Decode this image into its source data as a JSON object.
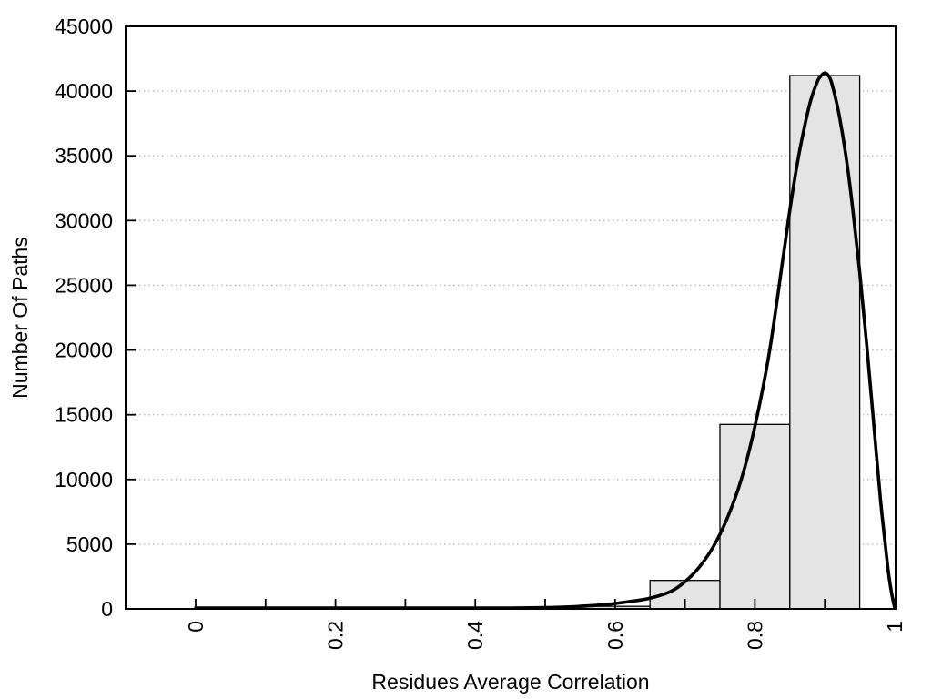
{
  "chart_data": {
    "type": "bar",
    "subtype": "histogram_with_density_curve",
    "title": "",
    "xlabel": "Residues Average Correlation",
    "ylabel": "Number Of Paths",
    "xlim": [
      0,
      1
    ],
    "ylim": [
      0,
      45000
    ],
    "grid": "horizontal-dotted",
    "legend": "none",
    "x_ticks": [
      0,
      0.1,
      0.2,
      0.3,
      0.4,
      0.5,
      0.6,
      0.7,
      0.8,
      0.9,
      1.0
    ],
    "x_labeled_ticks": [
      0,
      0.2,
      0.4,
      0.6,
      0.8,
      1.0
    ],
    "x_tick_labels": [
      "0",
      "0.2",
      "0.4",
      "0.6",
      "0.8",
      "1"
    ],
    "y_ticks": [
      0,
      5000,
      10000,
      15000,
      20000,
      25000,
      30000,
      35000,
      40000,
      45000
    ],
    "y_tick_labels": [
      "0",
      "5000",
      "10000",
      "15000",
      "20000",
      "25000",
      "30000",
      "35000",
      "40000",
      "45000"
    ],
    "bars": {
      "bin_width": 0.1,
      "bins": [
        {
          "x_start": 0.55,
          "x_end": 0.65,
          "count": 200
        },
        {
          "x_start": 0.65,
          "x_end": 0.75,
          "count": 2200
        },
        {
          "x_start": 0.75,
          "x_end": 0.85,
          "count": 14250
        },
        {
          "x_start": 0.85,
          "x_end": 0.95,
          "count": 41200
        }
      ]
    },
    "curve": {
      "name": "density-curve",
      "points": [
        [
          0.0,
          0
        ],
        [
          0.05,
          0
        ],
        [
          0.1,
          0
        ],
        [
          0.15,
          0
        ],
        [
          0.2,
          0
        ],
        [
          0.25,
          0
        ],
        [
          0.3,
          0
        ],
        [
          0.35,
          10
        ],
        [
          0.4,
          25
        ],
        [
          0.45,
          55
        ],
        [
          0.5,
          100
        ],
        [
          0.53,
          150
        ],
        [
          0.56,
          230
        ],
        [
          0.59,
          360
        ],
        [
          0.62,
          560
        ],
        [
          0.65,
          830
        ],
        [
          0.68,
          1360
        ],
        [
          0.7,
          2100
        ],
        [
          0.72,
          3200
        ],
        [
          0.74,
          4750
        ],
        [
          0.76,
          6950
        ],
        [
          0.78,
          9900
        ],
        [
          0.8,
          14100
        ],
        [
          0.82,
          19600
        ],
        [
          0.84,
          27000
        ],
        [
          0.85,
          30800
        ],
        [
          0.86,
          34200
        ],
        [
          0.87,
          37000
        ],
        [
          0.88,
          39300
        ],
        [
          0.89,
          40800
        ],
        [
          0.895,
          41200
        ],
        [
          0.9,
          41400
        ],
        [
          0.905,
          41200
        ],
        [
          0.91,
          40600
        ],
        [
          0.92,
          38300
        ],
        [
          0.93,
          35100
        ],
        [
          0.94,
          30900
        ],
        [
          0.95,
          26000
        ],
        [
          0.96,
          20400
        ],
        [
          0.97,
          14300
        ],
        [
          0.98,
          8300
        ],
        [
          0.99,
          3300
        ],
        [
          0.995,
          1400
        ],
        [
          1.0,
          50
        ]
      ]
    },
    "colors": {
      "bar_fill": "#e4e4e4",
      "bar_stroke": "#000000",
      "curve_stroke": "#000000",
      "grid_color": "#b8b8b8",
      "axis_color": "#000000",
      "background": "#ffffff"
    }
  }
}
